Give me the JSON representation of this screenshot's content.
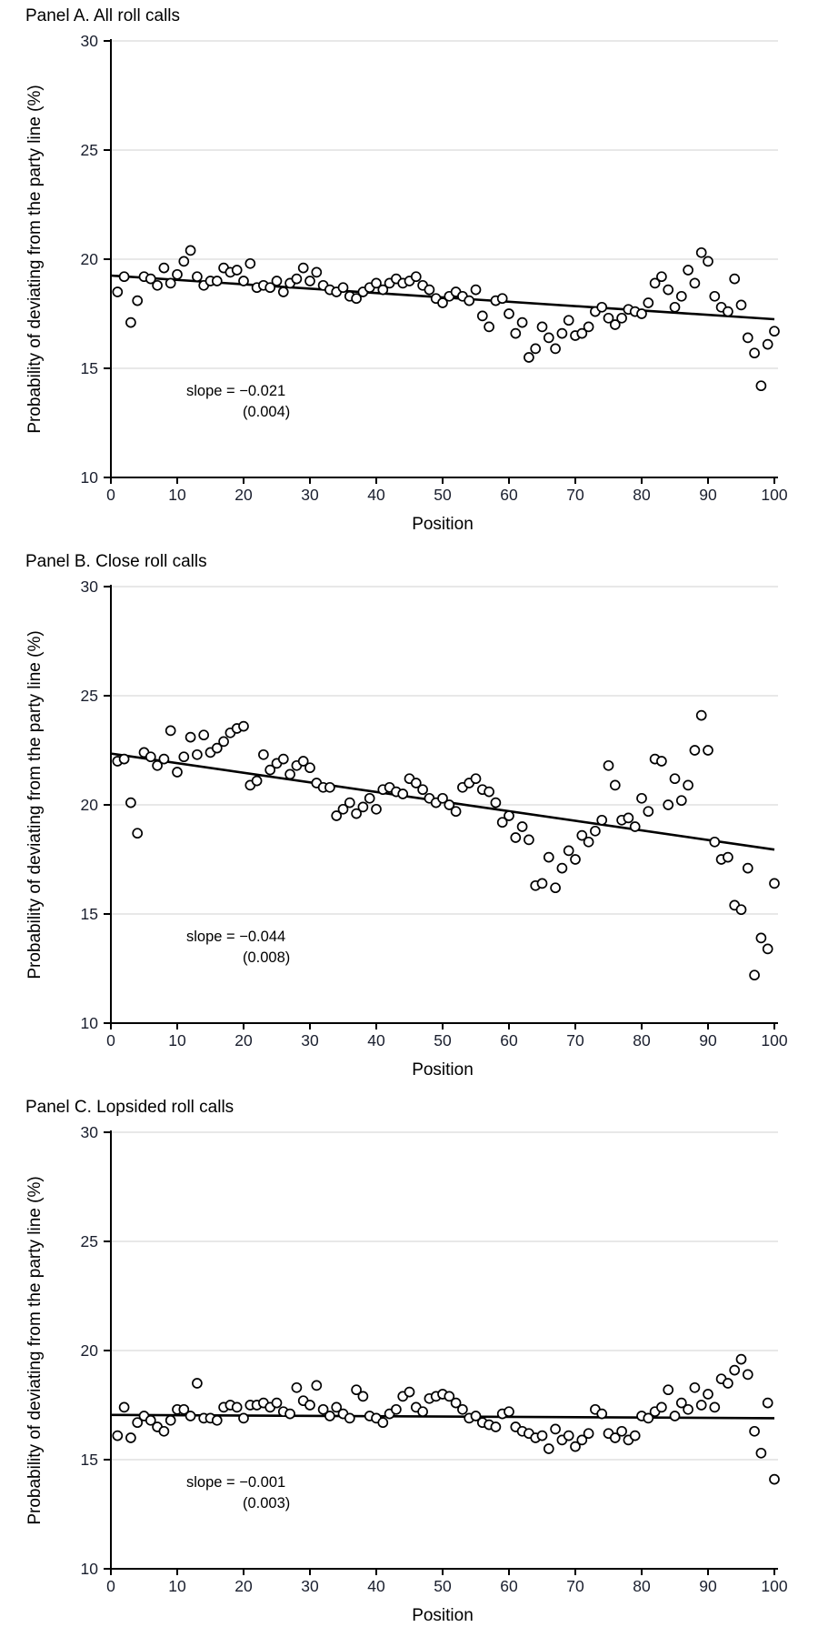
{
  "figure": {
    "panels": [
      {
        "title": "Panel A. All roll calls",
        "ylabel": "Probability of deviating from the party line (%)",
        "xlabel": "Position",
        "slope_line1": "slope = −0.021",
        "slope_line2": "(0.004)"
      },
      {
        "title": "Panel B. Close roll calls",
        "ylabel": "Probability of deviating from the party line (%)",
        "xlabel": "Position",
        "slope_line1": "slope = −0.044",
        "slope_line2": "(0.008)"
      },
      {
        "title": "Panel C. Lopsided roll calls",
        "ylabel": "Probability of deviating from the party line (%)",
        "xlabel": "Position",
        "slope_line1": "slope = −0.001",
        "slope_line2": "(0.003)"
      }
    ],
    "colors": {
      "point_stroke": "#000000",
      "point_fill": "#ffffff",
      "trend_line": "#000000",
      "grid_line": "#d9d9d9",
      "axis": "#000000",
      "tick_label": "#1a1f2e",
      "text": "#000000"
    }
  },
  "chart_data": [
    {
      "type": "scatter",
      "title": "Panel A. All roll calls",
      "xlabel": "Position",
      "ylabel": "Probability of deviating from the party line (%)",
      "xlim": [
        0,
        100
      ],
      "ylim": [
        10,
        30
      ],
      "xticks": [
        0,
        10,
        20,
        30,
        40,
        50,
        60,
        70,
        80,
        90,
        100
      ],
      "yticks": [
        10,
        15,
        20,
        25,
        30
      ],
      "grid": "horizontal",
      "legend": "none",
      "slope": -0.021,
      "slope_se": 0.004,
      "trend": {
        "x": [
          0,
          100
        ],
        "y": [
          19.25,
          17.25
        ]
      },
      "x": [
        1,
        2,
        3,
        4,
        5,
        6,
        7,
        8,
        9,
        10,
        11,
        12,
        13,
        14,
        15,
        16,
        17,
        18,
        19,
        20,
        21,
        22,
        23,
        24,
        25,
        26,
        27,
        28,
        29,
        30,
        31,
        32,
        33,
        34,
        35,
        36,
        37,
        38,
        39,
        40,
        41,
        42,
        43,
        44,
        45,
        46,
        47,
        48,
        49,
        50,
        51,
        52,
        53,
        54,
        55,
        56,
        57,
        58,
        59,
        60,
        61,
        62,
        63,
        64,
        65,
        66,
        67,
        68,
        69,
        70,
        71,
        72,
        73,
        74,
        75,
        76,
        77,
        78,
        79,
        80,
        81,
        82,
        83,
        84,
        85,
        86,
        87,
        88,
        89,
        90,
        91,
        92,
        93,
        94,
        95,
        96,
        97,
        98,
        99,
        100
      ],
      "y": [
        18.5,
        19.2,
        17.1,
        18.1,
        19.2,
        19.1,
        18.8,
        19.6,
        18.9,
        19.3,
        19.9,
        20.4,
        19.2,
        18.8,
        19.0,
        19.0,
        19.6,
        19.4,
        19.5,
        19.0,
        19.8,
        18.7,
        18.8,
        18.7,
        19.0,
        18.5,
        18.9,
        19.1,
        19.6,
        19.0,
        19.4,
        18.8,
        18.6,
        18.5,
        18.7,
        18.3,
        18.2,
        18.5,
        18.7,
        18.9,
        18.6,
        18.9,
        19.1,
        18.9,
        19.0,
        19.2,
        18.8,
        18.6,
        18.2,
        18.0,
        18.3,
        18.5,
        18.3,
        18.1,
        18.6,
        17.4,
        16.9,
        18.1,
        18.2,
        17.5,
        16.6,
        17.1,
        15.5,
        15.9,
        16.9,
        16.4,
        15.9,
        16.6,
        17.2,
        16.5,
        16.6,
        16.9,
        17.6,
        17.8,
        17.3,
        17.0,
        17.3,
        17.7,
        17.6,
        17.5,
        18.0,
        18.9,
        19.2,
        18.6,
        17.8,
        18.3,
        19.5,
        18.9,
        20.3,
        19.9,
        18.3,
        17.8,
        17.6,
        19.1,
        17.9,
        16.4,
        15.7,
        14.2,
        16.1,
        16.7
      ]
    },
    {
      "type": "scatter",
      "title": "Panel B. Close roll calls",
      "xlabel": "Position",
      "ylabel": "Probability of deviating from the party line (%)",
      "xlim": [
        0,
        100
      ],
      "ylim": [
        10,
        30
      ],
      "xticks": [
        0,
        10,
        20,
        30,
        40,
        50,
        60,
        70,
        80,
        90,
        100
      ],
      "yticks": [
        10,
        15,
        20,
        25,
        30
      ],
      "grid": "horizontal",
      "legend": "none",
      "slope": -0.044,
      "slope_se": 0.008,
      "trend": {
        "x": [
          0,
          100
        ],
        "y": [
          22.35,
          17.95
        ]
      },
      "x": [
        1,
        2,
        3,
        4,
        5,
        6,
        7,
        8,
        9,
        10,
        11,
        12,
        13,
        14,
        15,
        16,
        17,
        18,
        19,
        20,
        21,
        22,
        23,
        24,
        25,
        26,
        27,
        28,
        29,
        30,
        31,
        32,
        33,
        34,
        35,
        36,
        37,
        38,
        39,
        40,
        41,
        42,
        43,
        44,
        45,
        46,
        47,
        48,
        49,
        50,
        51,
        52,
        53,
        54,
        55,
        56,
        57,
        58,
        59,
        60,
        61,
        62,
        63,
        64,
        65,
        66,
        67,
        68,
        69,
        70,
        71,
        72,
        73,
        74,
        75,
        76,
        77,
        78,
        79,
        80,
        81,
        82,
        83,
        84,
        85,
        86,
        87,
        88,
        89,
        90,
        91,
        92,
        93,
        94,
        95,
        96,
        97,
        98,
        99,
        100
      ],
      "y": [
        22.0,
        22.1,
        20.1,
        18.7,
        22.4,
        22.2,
        21.8,
        22.1,
        23.4,
        21.5,
        22.2,
        23.1,
        22.3,
        23.2,
        22.4,
        22.6,
        22.9,
        23.3,
        23.5,
        23.6,
        20.9,
        21.1,
        22.3,
        21.6,
        21.9,
        22.1,
        21.4,
        21.8,
        22.0,
        21.7,
        21.0,
        20.8,
        20.8,
        19.5,
        19.8,
        20.1,
        19.6,
        19.9,
        20.3,
        19.8,
        20.7,
        20.8,
        20.6,
        20.5,
        21.2,
        21.0,
        20.7,
        20.3,
        20.1,
        20.3,
        20.0,
        19.7,
        20.8,
        21.0,
        21.2,
        20.7,
        20.6,
        20.1,
        19.2,
        19.5,
        18.5,
        19.0,
        18.4,
        16.3,
        16.4,
        17.6,
        16.2,
        17.1,
        17.9,
        17.5,
        18.6,
        18.3,
        18.8,
        19.3,
        21.8,
        20.9,
        19.3,
        19.4,
        19.0,
        20.3,
        19.7,
        22.1,
        22.0,
        20.0,
        21.2,
        20.2,
        20.9,
        22.5,
        24.1,
        22.5,
        18.3,
        17.5,
        17.6,
        15.4,
        15.2,
        17.1,
        12.2,
        13.9,
        13.4,
        16.4
      ]
    },
    {
      "type": "scatter",
      "title": "Panel C. Lopsided roll calls",
      "xlabel": "Position",
      "ylabel": "Probability of deviating from the party line (%)",
      "xlim": [
        0,
        100
      ],
      "ylim": [
        10,
        30
      ],
      "xticks": [
        0,
        10,
        20,
        30,
        40,
        50,
        60,
        70,
        80,
        90,
        100
      ],
      "yticks": [
        10,
        15,
        20,
        25,
        30
      ],
      "grid": "horizontal",
      "legend": "none",
      "slope": -0.001,
      "slope_se": 0.003,
      "trend": {
        "x": [
          0,
          100
        ],
        "y": [
          17.05,
          16.9
        ]
      },
      "x": [
        1,
        2,
        3,
        4,
        5,
        6,
        7,
        8,
        9,
        10,
        11,
        12,
        13,
        14,
        15,
        16,
        17,
        18,
        19,
        20,
        21,
        22,
        23,
        24,
        25,
        26,
        27,
        28,
        29,
        30,
        31,
        32,
        33,
        34,
        35,
        36,
        37,
        38,
        39,
        40,
        41,
        42,
        43,
        44,
        45,
        46,
        47,
        48,
        49,
        50,
        51,
        52,
        53,
        54,
        55,
        56,
        57,
        58,
        59,
        60,
        61,
        62,
        63,
        64,
        65,
        66,
        67,
        68,
        69,
        70,
        71,
        72,
        73,
        74,
        75,
        76,
        77,
        78,
        79,
        80,
        81,
        82,
        83,
        84,
        85,
        86,
        87,
        88,
        89,
        90,
        91,
        92,
        93,
        94,
        95,
        96,
        97,
        98,
        99,
        100
      ],
      "y": [
        16.1,
        17.4,
        16.0,
        16.7,
        17.0,
        16.8,
        16.5,
        16.3,
        16.8,
        17.3,
        17.3,
        17.0,
        18.5,
        16.9,
        16.9,
        16.8,
        17.4,
        17.5,
        17.4,
        16.9,
        17.5,
        17.5,
        17.6,
        17.4,
        17.6,
        17.2,
        17.1,
        18.3,
        17.7,
        17.5,
        18.4,
        17.3,
        17.0,
        17.4,
        17.1,
        16.9,
        18.2,
        17.9,
        17.0,
        16.9,
        16.7,
        17.1,
        17.3,
        17.9,
        18.1,
        17.4,
        17.2,
        17.8,
        17.9,
        18.0,
        17.9,
        17.6,
        17.3,
        16.9,
        17.0,
        16.7,
        16.6,
        16.5,
        17.1,
        17.2,
        16.5,
        16.3,
        16.2,
        16.0,
        16.1,
        15.5,
        16.4,
        15.9,
        16.1,
        15.6,
        15.9,
        16.2,
        17.3,
        17.1,
        16.2,
        16.0,
        16.3,
        15.9,
        16.1,
        17.0,
        16.9,
        17.2,
        17.4,
        18.2,
        17.0,
        17.6,
        17.3,
        18.3,
        17.5,
        18.0,
        17.4,
        18.7,
        18.5,
        19.1,
        19.6,
        18.9,
        16.3,
        15.3,
        17.6,
        14.1
      ]
    }
  ]
}
